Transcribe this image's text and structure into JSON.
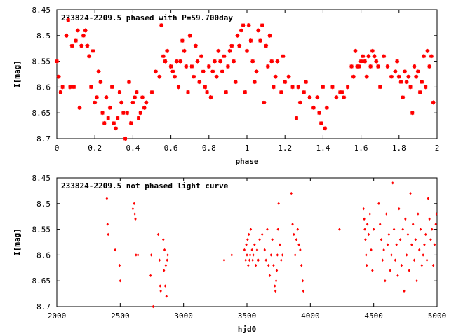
{
  "chart_data": [
    {
      "type": "scatter",
      "title": "233824-2209.5 phased with P=59.700day",
      "xlabel": "phase",
      "ylabel": "I[mag]",
      "xlim": [
        0,
        2
      ],
      "ylim": [
        8.7,
        8.45
      ],
      "y_inverted": true,
      "grid": false,
      "marker_color": "#ff0000",
      "x_ticks": [
        "0",
        "0.2",
        "0.4",
        "0.6",
        "0.8",
        "1",
        "1.2",
        "1.4",
        "1.6",
        "1.8",
        "2"
      ],
      "y_ticks": [
        "8.45",
        "8.5",
        "8.55",
        "8.6",
        "8.65",
        "8.7"
      ],
      "points": [
        [
          0.0,
          8.55
        ],
        [
          0.01,
          8.58
        ],
        [
          0.02,
          8.61
        ],
        [
          0.03,
          8.6
        ],
        [
          0.05,
          8.5
        ],
        [
          0.06,
          8.47
        ],
        [
          0.07,
          8.6
        ],
        [
          0.08,
          8.52
        ],
        [
          0.09,
          8.6
        ],
        [
          0.1,
          8.51
        ],
        [
          0.11,
          8.49
        ],
        [
          0.12,
          8.64
        ],
        [
          0.13,
          8.52
        ],
        [
          0.14,
          8.5
        ],
        [
          0.15,
          8.49
        ],
        [
          0.16,
          8.52
        ],
        [
          0.17,
          8.54
        ],
        [
          0.18,
          8.6
        ],
        [
          0.19,
          8.53
        ],
        [
          0.2,
          8.63
        ],
        [
          0.21,
          8.62
        ],
        [
          0.22,
          8.57
        ],
        [
          0.23,
          8.59
        ],
        [
          0.24,
          8.65
        ],
        [
          0.25,
          8.67
        ],
        [
          0.26,
          8.62
        ],
        [
          0.27,
          8.66
        ],
        [
          0.28,
          8.64
        ],
        [
          0.29,
          8.6
        ],
        [
          0.3,
          8.67
        ],
        [
          0.31,
          8.68
        ],
        [
          0.32,
          8.66
        ],
        [
          0.33,
          8.61
        ],
        [
          0.34,
          8.63
        ],
        [
          0.35,
          8.65
        ],
        [
          0.36,
          8.7
        ],
        [
          0.37,
          8.65
        ],
        [
          0.38,
          8.59
        ],
        [
          0.39,
          8.67
        ],
        [
          0.4,
          8.63
        ],
        [
          0.41,
          8.62
        ],
        [
          0.42,
          8.61
        ],
        [
          0.43,
          8.66
        ],
        [
          0.44,
          8.65
        ],
        [
          0.45,
          8.62
        ],
        [
          0.46,
          8.64
        ],
        [
          0.47,
          8.63
        ],
        [
          0.5,
          8.61
        ],
        [
          0.52,
          8.57
        ],
        [
          0.54,
          8.58
        ],
        [
          0.55,
          8.48
        ],
        [
          0.56,
          8.54
        ],
        [
          0.57,
          8.55
        ],
        [
          0.58,
          8.53
        ],
        [
          0.6,
          8.56
        ],
        [
          0.61,
          8.57
        ],
        [
          0.62,
          8.58
        ],
        [
          0.63,
          8.55
        ],
        [
          0.64,
          8.6
        ],
        [
          0.65,
          8.55
        ],
        [
          0.66,
          8.51
        ],
        [
          0.67,
          8.53
        ],
        [
          0.68,
          8.56
        ],
        [
          0.69,
          8.61
        ],
        [
          0.7,
          8.5
        ],
        [
          0.71,
          8.56
        ],
        [
          0.72,
          8.58
        ],
        [
          0.73,
          8.52
        ],
        [
          0.74,
          8.55
        ],
        [
          0.75,
          8.59
        ],
        [
          0.76,
          8.54
        ],
        [
          0.77,
          8.57
        ],
        [
          0.78,
          8.6
        ],
        [
          0.79,
          8.61
        ],
        [
          0.8,
          8.56
        ],
        [
          0.81,
          8.62
        ],
        [
          0.82,
          8.57
        ],
        [
          0.83,
          8.55
        ],
        [
          0.84,
          8.58
        ],
        [
          0.85,
          8.53
        ],
        [
          0.86,
          8.55
        ],
        [
          0.87,
          8.57
        ],
        [
          0.88,
          8.54
        ],
        [
          0.89,
          8.61
        ],
        [
          0.9,
          8.56
        ],
        [
          0.91,
          8.53
        ],
        [
          0.92,
          8.52
        ],
        [
          0.93,
          8.55
        ],
        [
          0.94,
          8.59
        ],
        [
          0.95,
          8.5
        ],
        [
          0.96,
          8.52
        ],
        [
          0.97,
          8.49
        ],
        [
          0.98,
          8.48
        ],
        [
          0.99,
          8.61
        ],
        [
          1.0,
          8.53
        ],
        [
          1.01,
          8.48
        ],
        [
          1.02,
          8.51
        ],
        [
          1.03,
          8.55
        ],
        [
          1.04,
          8.59
        ],
        [
          1.05,
          8.57
        ],
        [
          1.06,
          8.49
        ],
        [
          1.07,
          8.51
        ],
        [
          1.08,
          8.48
        ],
        [
          1.09,
          8.63
        ],
        [
          1.1,
          8.52
        ],
        [
          1.11,
          8.56
        ],
        [
          1.12,
          8.5
        ],
        [
          1.13,
          8.55
        ],
        [
          1.14,
          8.6
        ],
        [
          1.15,
          8.58
        ],
        [
          1.16,
          8.55
        ],
        [
          1.18,
          8.61
        ],
        [
          1.19,
          8.54
        ],
        [
          1.2,
          8.59
        ],
        [
          1.22,
          8.58
        ],
        [
          1.24,
          8.6
        ],
        [
          1.26,
          8.66
        ],
        [
          1.27,
          8.6
        ],
        [
          1.28,
          8.63
        ],
        [
          1.3,
          8.61
        ],
        [
          1.31,
          8.59
        ],
        [
          1.33,
          8.62
        ],
        [
          1.35,
          8.64
        ],
        [
          1.37,
          8.62
        ],
        [
          1.38,
          8.65
        ],
        [
          1.39,
          8.67
        ],
        [
          1.4,
          8.6
        ],
        [
          1.41,
          8.68
        ],
        [
          1.42,
          8.64
        ],
        [
          1.45,
          8.6
        ],
        [
          1.47,
          8.62
        ],
        [
          1.49,
          8.61
        ],
        [
          1.5,
          8.61
        ],
        [
          1.51,
          8.62
        ],
        [
          1.53,
          8.6
        ],
        [
          1.55,
          8.56
        ],
        [
          1.56,
          8.58
        ],
        [
          1.57,
          8.53
        ],
        [
          1.58,
          8.56
        ],
        [
          1.59,
          8.56
        ],
        [
          1.6,
          8.55
        ],
        [
          1.61,
          8.54
        ],
        [
          1.62,
          8.55
        ],
        [
          1.63,
          8.58
        ],
        [
          1.64,
          8.54
        ],
        [
          1.65,
          8.56
        ],
        [
          1.66,
          8.53
        ],
        [
          1.67,
          8.54
        ],
        [
          1.68,
          8.55
        ],
        [
          1.69,
          8.56
        ],
        [
          1.7,
          8.6
        ],
        [
          1.72,
          8.54
        ],
        [
          1.74,
          8.56
        ],
        [
          1.76,
          8.58
        ],
        [
          1.78,
          8.57
        ],
        [
          1.79,
          8.55
        ],
        [
          1.8,
          8.58
        ],
        [
          1.81,
          8.59
        ],
        [
          1.82,
          8.62
        ],
        [
          1.83,
          8.57
        ],
        [
          1.84,
          8.59
        ],
        [
          1.85,
          8.58
        ],
        [
          1.86,
          8.6
        ],
        [
          1.87,
          8.65
        ],
        [
          1.88,
          8.56
        ],
        [
          1.89,
          8.58
        ],
        [
          1.9,
          8.57
        ],
        [
          1.91,
          8.61
        ],
        [
          1.92,
          8.59
        ],
        [
          1.93,
          8.54
        ],
        [
          1.94,
          8.6
        ],
        [
          1.95,
          8.53
        ],
        [
          1.96,
          8.56
        ],
        [
          1.97,
          8.54
        ],
        [
          1.98,
          8.63
        ]
      ]
    },
    {
      "type": "scatter",
      "title": "233824-2209.5 not phased light curve",
      "xlabel": "hjd0",
      "ylabel": "I[mag]",
      "xlim": [
        2000,
        5000
      ],
      "ylim": [
        8.7,
        8.45
      ],
      "y_inverted": true,
      "grid": false,
      "marker_color": "#ff0000",
      "x_ticks": [
        "2000",
        "2500",
        "3000",
        "3500",
        "4000",
        "4500",
        "5000"
      ],
      "y_ticks": [
        "8.45",
        "8.5",
        "8.55",
        "8.6",
        "8.65",
        "8.7"
      ],
      "points": [
        [
          2395,
          8.49
        ],
        [
          2400,
          8.54
        ],
        [
          2405,
          8.56
        ],
        [
          2460,
          8.59
        ],
        [
          2495,
          8.62
        ],
        [
          2500,
          8.65
        ],
        [
          2600,
          8.51
        ],
        [
          2610,
          8.5
        ],
        [
          2615,
          8.52
        ],
        [
          2620,
          8.53
        ],
        [
          2625,
          8.6
        ],
        [
          2640,
          8.6
        ],
        [
          2760,
          8.7
        ],
        [
          2745,
          8.6
        ],
        [
          2740,
          8.64
        ],
        [
          2800,
          8.56
        ],
        [
          2810,
          8.61
        ],
        [
          2815,
          8.66
        ],
        [
          2820,
          8.67
        ],
        [
          2840,
          8.57
        ],
        [
          2845,
          8.63
        ],
        [
          2850,
          8.59
        ],
        [
          2855,
          8.66
        ],
        [
          2860,
          8.62
        ],
        [
          2865,
          8.68
        ],
        [
          2870,
          8.61
        ],
        [
          2875,
          8.6
        ],
        [
          3320,
          8.61
        ],
        [
          3380,
          8.6
        ],
        [
          3480,
          8.59
        ],
        [
          3490,
          8.61
        ],
        [
          3495,
          8.58
        ],
        [
          3500,
          8.6
        ],
        [
          3505,
          8.57
        ],
        [
          3510,
          8.62
        ],
        [
          3515,
          8.56
        ],
        [
          3520,
          8.61
        ],
        [
          3525,
          8.6
        ],
        [
          3530,
          8.55
        ],
        [
          3540,
          8.59
        ],
        [
          3545,
          8.61
        ],
        [
          3550,
          8.6
        ],
        [
          3560,
          8.58
        ],
        [
          3570,
          8.62
        ],
        [
          3580,
          8.59
        ],
        [
          3590,
          8.61
        ],
        [
          3600,
          8.57
        ],
        [
          3620,
          8.56
        ],
        [
          3640,
          8.59
        ],
        [
          3650,
          8.61
        ],
        [
          3660,
          8.55
        ],
        [
          3670,
          8.62
        ],
        [
          3680,
          8.64
        ],
        [
          3690,
          8.6
        ],
        [
          3700,
          8.57
        ],
        [
          3710,
          8.62
        ],
        [
          3720,
          8.66
        ],
        [
          3725,
          8.67
        ],
        [
          3730,
          8.65
        ],
        [
          3735,
          8.63
        ],
        [
          3740,
          8.6
        ],
        [
          3745,
          8.55
        ],
        [
          3750,
          8.5
        ],
        [
          3760,
          8.58
        ],
        [
          3770,
          8.61
        ],
        [
          3780,
          8.6
        ],
        [
          3850,
          8.48
        ],
        [
          3860,
          8.54
        ],
        [
          3870,
          8.56
        ],
        [
          3880,
          8.6
        ],
        [
          3890,
          8.57
        ],
        [
          3900,
          8.55
        ],
        [
          3910,
          8.58
        ],
        [
          3920,
          8.59
        ],
        [
          3930,
          8.62
        ],
        [
          3940,
          8.65
        ],
        [
          3945,
          8.67
        ],
        [
          4230,
          8.55
        ],
        [
          4420,
          8.51
        ],
        [
          4425,
          8.53
        ],
        [
          4430,
          8.55
        ],
        [
          4435,
          8.57
        ],
        [
          4440,
          8.6
        ],
        [
          4445,
          8.62
        ],
        [
          4450,
          8.54
        ],
        [
          4460,
          8.56
        ],
        [
          4470,
          8.52
        ],
        [
          4480,
          8.59
        ],
        [
          4490,
          8.63
        ],
        [
          4500,
          8.55
        ],
        [
          4540,
          8.5
        ],
        [
          4550,
          8.54
        ],
        [
          4560,
          8.57
        ],
        [
          4570,
          8.61
        ],
        [
          4580,
          8.59
        ],
        [
          4590,
          8.65
        ],
        [
          4600,
          8.52
        ],
        [
          4610,
          8.58
        ],
        [
          4620,
          8.56
        ],
        [
          4630,
          8.63
        ],
        [
          4640,
          8.6
        ],
        [
          4650,
          8.46
        ],
        [
          4660,
          8.55
        ],
        [
          4670,
          8.61
        ],
        [
          4680,
          8.58
        ],
        [
          4690,
          8.64
        ],
        [
          4700,
          8.51
        ],
        [
          4710,
          8.57
        ],
        [
          4720,
          8.62
        ],
        [
          4730,
          8.55
        ],
        [
          4740,
          8.67
        ],
        [
          4750,
          8.53
        ],
        [
          4760,
          8.6
        ],
        [
          4770,
          8.56
        ],
        [
          4780,
          8.63
        ],
        [
          4790,
          8.48
        ],
        [
          4800,
          8.58
        ],
        [
          4810,
          8.54
        ],
        [
          4820,
          8.61
        ],
        [
          4830,
          8.57
        ],
        [
          4840,
          8.65
        ],
        [
          4850,
          8.52
        ],
        [
          4860,
          8.59
        ],
        [
          4870,
          8.55
        ],
        [
          4880,
          8.62
        ],
        [
          4890,
          8.6
        ],
        [
          4900,
          8.58
        ],
        [
          4910,
          8.56
        ],
        [
          4920,
          8.61
        ],
        [
          4930,
          8.49
        ],
        [
          4940,
          8.53
        ],
        [
          4950,
          8.57
        ],
        [
          4960,
          8.55
        ],
        [
          4970,
          8.62
        ],
        [
          4980,
          8.58
        ],
        [
          4990,
          8.54
        ],
        [
          4995,
          8.52
        ]
      ]
    }
  ]
}
